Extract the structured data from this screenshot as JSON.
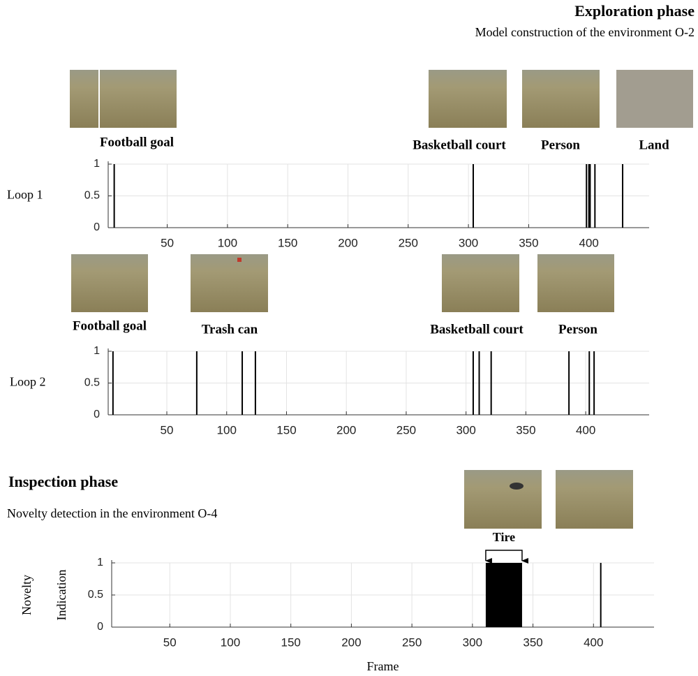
{
  "chart_data": [
    {
      "type": "stem",
      "title": "Exploration phase",
      "subtitle": "Model construction of the environment O-2",
      "row_label": "Loop 1",
      "image_labels": [
        "Football goal",
        "Basketball court",
        "Person",
        "Land"
      ],
      "x": [
        6,
        304,
        398,
        400,
        401,
        405,
        428
      ],
      "values": [
        1,
        1,
        1,
        1,
        1,
        1,
        1
      ],
      "color": "#000000",
      "xlim": [
        1,
        450
      ],
      "xticks": [
        50,
        100,
        150,
        200,
        250,
        300,
        350,
        400
      ],
      "ylim": [
        0,
        1
      ],
      "yticks": [
        0,
        0.5,
        1
      ],
      "grid": true
    },
    {
      "type": "stem",
      "row_label": "Loop 2",
      "image_labels": [
        "Football goal",
        "Trash can",
        "Basketball court",
        "Person"
      ],
      "x": [
        5,
        75,
        113,
        124,
        306,
        311,
        321,
        386,
        403,
        407
      ],
      "values": [
        1,
        1,
        1,
        1,
        1,
        1,
        1,
        1,
        1,
        1
      ],
      "color": "#000000",
      "xlim": [
        1,
        453
      ],
      "xticks": [
        50,
        100,
        150,
        200,
        250,
        300,
        350,
        400
      ],
      "ylim": [
        0,
        1
      ],
      "yticks": [
        0,
        0.5,
        1
      ],
      "grid": true
    },
    {
      "type": "stem",
      "title": "Inspection phase",
      "subtitle": "Novelty detection in the environment O-4",
      "ylabel": [
        "Novelty",
        "Indication"
      ],
      "xlabel": "Frame",
      "annotation": "Tire",
      "x": [
        406
      ],
      "values": [
        1
      ],
      "regions": [
        {
          "start": 311,
          "end": 341,
          "value": 1
        }
      ],
      "color": "#000000",
      "xlim": [
        2,
        450
      ],
      "xticks": [
        50,
        100,
        150,
        200,
        250,
        300,
        350,
        400
      ],
      "ylim": [
        0,
        1
      ],
      "yticks": [
        0,
        0.5,
        1
      ],
      "grid": true
    }
  ]
}
